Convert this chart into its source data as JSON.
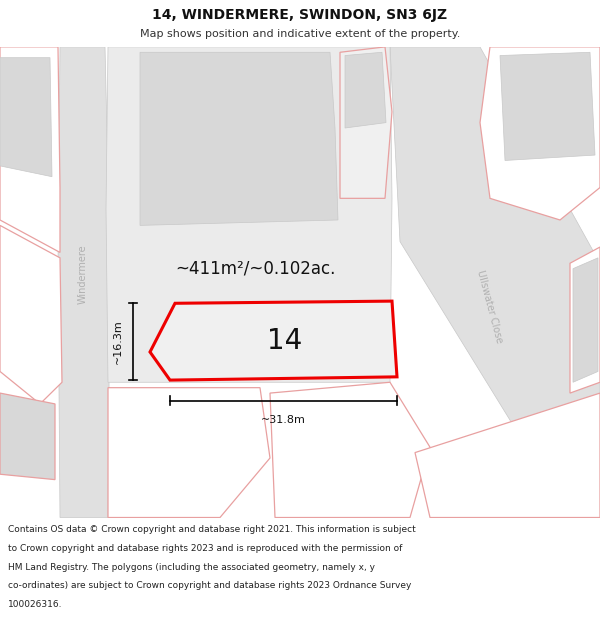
{
  "title_line1": "14, WINDERMERE, SWINDON, SN3 6JZ",
  "title_line2": "Map shows position and indicative extent of the property.",
  "footer_lines": [
    "Contains OS data © Crown copyright and database right 2021. This information is subject",
    "to Crown copyright and database rights 2023 and is reproduced with the permission of",
    "HM Land Registry. The polygons (including the associated geometry, namely x, y",
    "co-ordinates) are subject to Crown copyright and database rights 2023 Ordnance Survey",
    "100026316."
  ],
  "area_text": "~411m²/~0.102ac.",
  "number_text": "14",
  "width_text": "~31.8m",
  "height_text": "~16.3m",
  "bg_color": "#f7f7f7",
  "map_bg": "#f7f7f7",
  "road_gray": "#e0e0e0",
  "road_border": "#c8c8c8",
  "building_fill": "#d8d8d8",
  "parcel_fill": "#ffffff",
  "parcel_pink": "#e8a0a0",
  "plot14_fill": "#f0f0f0",
  "plot14_outline": "#ee0000",
  "street_color": "#b0b0b0",
  "title_color": "#111111",
  "footer_color": "#222222",
  "dim_color": "#000000"
}
